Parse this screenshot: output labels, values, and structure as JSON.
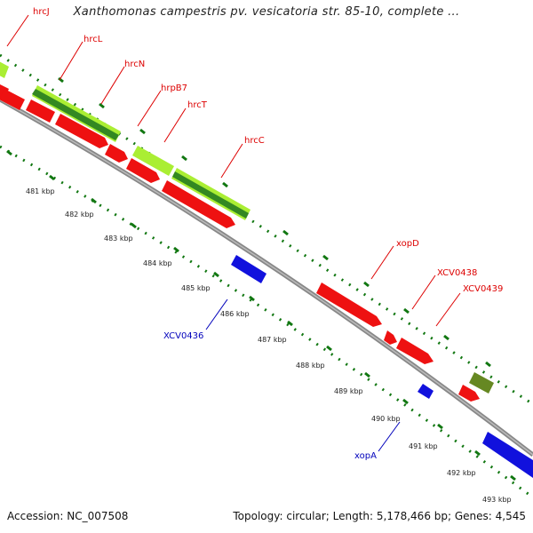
{
  "title": "Xanthomonas campestris pv. vesicatoria str. 85-10, complete ...",
  "footer": {
    "accession": "Accession: NC_007508",
    "summary": "Topology: circular; Length: 5,178,466 bp; Genes: 4,545"
  },
  "colors": {
    "forward_gene": "#ee1111",
    "reverse_gene": "#1111dd",
    "light_green": "#aaee33",
    "dark_green": "#338822",
    "olive": "#668822",
    "backbone": "#888888",
    "dots": "#117711",
    "forward_label": "#dd0000",
    "reverse_label": "#0000bb"
  },
  "kbp_labels": [
    "481 kbp",
    "482 kbp",
    "483 kbp",
    "484 kbp",
    "485 kbp",
    "486 kbp",
    "487 kbp",
    "488 kbp",
    "489 kbp",
    "490 kbp",
    "491 kbp",
    "492 kbp",
    "493 kbp"
  ],
  "gene_labels": [
    {
      "text": "hrcJ",
      "strand": "forward"
    },
    {
      "text": "hrcL",
      "strand": "forward"
    },
    {
      "text": "hrcN",
      "strand": "forward"
    },
    {
      "text": "hrpB7",
      "strand": "forward"
    },
    {
      "text": "hrcT",
      "strand": "forward"
    },
    {
      "text": "hrcC",
      "strand": "forward"
    },
    {
      "text": "xopD",
      "strand": "forward"
    },
    {
      "text": "XCV0438",
      "strand": "forward"
    },
    {
      "text": "XCV0439",
      "strand": "forward"
    },
    {
      "text": "XCV0436",
      "strand": "reverse"
    },
    {
      "text": "xopA",
      "strand": "reverse"
    }
  ]
}
